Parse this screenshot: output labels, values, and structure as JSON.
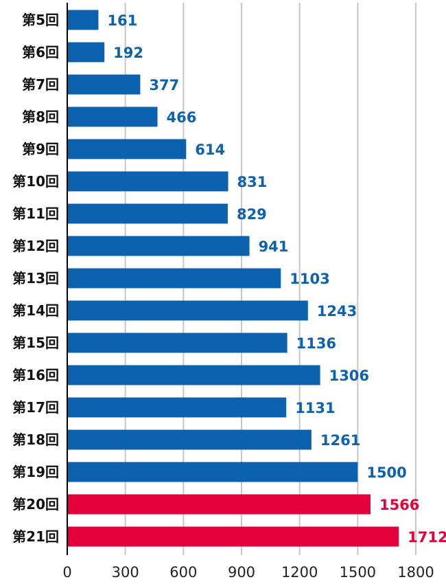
{
  "chart_data": {
    "type": "bar",
    "orientation": "horizontal",
    "categories": [
      "第5回",
      "第6回",
      "第7回",
      "第8回",
      "第9回",
      "第10回",
      "第11回",
      "第12回",
      "第13回",
      "第14回",
      "第15回",
      "第16回",
      "第17回",
      "第18回",
      "第19回",
      "第20回",
      "第21回"
    ],
    "values": [
      161,
      192,
      377,
      466,
      614,
      831,
      829,
      941,
      1103,
      1243,
      1136,
      1306,
      1131,
      1261,
      1500,
      1566,
      1712
    ],
    "value_labels": [
      "161",
      "192",
      "377",
      "466",
      "614",
      "831",
      "829",
      "941",
      "1103",
      "1243",
      "1136",
      "1306",
      "1131",
      "1261",
      "1500",
      "1566",
      "1712"
    ],
    "highlight": [
      false,
      false,
      false,
      false,
      false,
      false,
      false,
      false,
      false,
      false,
      false,
      false,
      false,
      false,
      false,
      true,
      true
    ],
    "xlim": [
      0,
      1800
    ],
    "xticks": [
      0,
      300,
      600,
      900,
      1200,
      1500,
      1800
    ],
    "xtick_labels": [
      "0",
      "300",
      "600",
      "900",
      "1200",
      "1500",
      "1800"
    ],
    "grid": true,
    "colors": {
      "bar": "#0d62b0",
      "highlight": "#e4003a",
      "label": "#0d62b0",
      "highlight_label": "#e4003a"
    }
  }
}
